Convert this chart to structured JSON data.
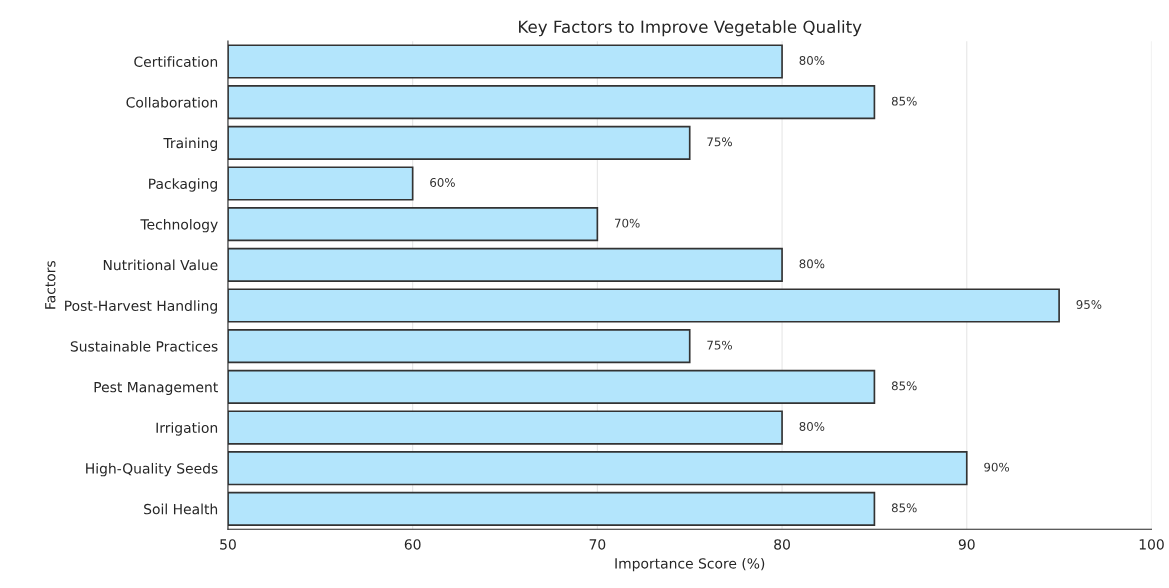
{
  "chart_data": {
    "type": "bar",
    "orientation": "horizontal",
    "title": "Key Factors to Improve Vegetable Quality",
    "xlabel": "Importance Score (%)",
    "ylabel": "Factors",
    "categories": [
      "Certification",
      "Collaboration",
      "Training",
      "Packaging",
      "Technology",
      "Nutritional Value",
      "Post-Harvest Handling",
      "Sustainable Practices",
      "Pest Management",
      "Irrigation",
      "High-Quality Seeds",
      "Soil Health"
    ],
    "values": [
      80,
      85,
      75,
      60,
      70,
      80,
      95,
      75,
      85,
      80,
      90,
      85
    ],
    "value_labels": [
      "80%",
      "85%",
      "75%",
      "60%",
      "70%",
      "80%",
      "95%",
      "75%",
      "85%",
      "80%",
      "90%",
      "85%"
    ],
    "color": "#b3e5fc",
    "xlim": [
      50,
      100
    ],
    "xticks": [
      50,
      60,
      70,
      80,
      90,
      100
    ],
    "grid": "x",
    "legend": false
  }
}
